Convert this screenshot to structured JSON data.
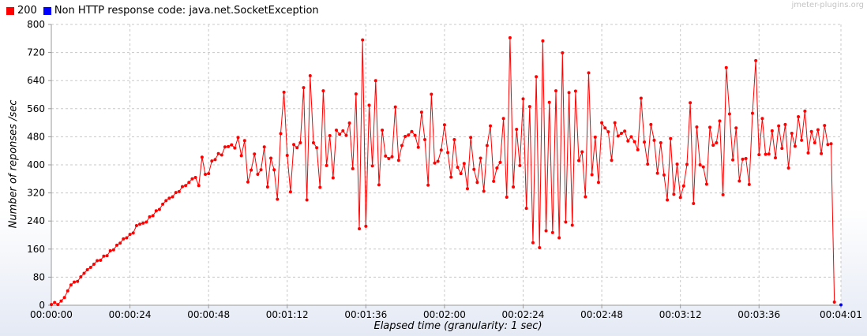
{
  "watermark": "jmeter-plugins.org",
  "colors": {
    "series_200": "#ff0000",
    "series_socket": "#0000ff",
    "grid": "#c8c8c8",
    "axis": "#999999"
  },
  "chart_data": {
    "type": "line",
    "title": "",
    "xlabel": "Elapsed time (granularity: 1 sec)",
    "ylabel": "Number of reponses /sec",
    "x_unit": "seconds",
    "xlim": [
      0,
      241
    ],
    "ylim": [
      0,
      800
    ],
    "yticks": [
      0,
      80,
      160,
      240,
      320,
      400,
      480,
      560,
      640,
      720,
      800
    ],
    "xticks": [
      {
        "value": 0,
        "label": "00:00:00"
      },
      {
        "value": 24,
        "label": "00:00:24"
      },
      {
        "value": 48,
        "label": "00:00:48"
      },
      {
        "value": 72,
        "label": "00:01:12"
      },
      {
        "value": 96,
        "label": "00:01:36"
      },
      {
        "value": 120,
        "label": "00:02:00"
      },
      {
        "value": 144,
        "label": "00:02:24"
      },
      {
        "value": 168,
        "label": "00:02:48"
      },
      {
        "value": 192,
        "label": "00:03:12"
      },
      {
        "value": 216,
        "label": "00:03:36"
      },
      {
        "value": 241,
        "label": "00:04:01"
      }
    ],
    "grid": true,
    "legend_position": "top-left",
    "series": [
      {
        "name": "200",
        "color": "#ff0000",
        "x_start": 0,
        "x_step": 1,
        "values": [
          2,
          8,
          2,
          12,
          22,
          41,
          58,
          66,
          68,
          81,
          91,
          101,
          108,
          117,
          127,
          128,
          140,
          141,
          155,
          158,
          171,
          177,
          189,
          192,
          202,
          206,
          227,
          231,
          234,
          237,
          252,
          255,
          269,
          273,
          288,
          298,
          305,
          309,
          321,
          324,
          338,
          341,
          350,
          360,
          364,
          341,
          422,
          373,
          375,
          411,
          415,
          432,
          428,
          451,
          452,
          457,
          448,
          478,
          426,
          469,
          351,
          385,
          431,
          373,
          386,
          451,
          337,
          419,
          386,
          302,
          489,
          607,
          427,
          323,
          458,
          449,
          463,
          620,
          300,
          654,
          463,
          449,
          336,
          611,
          398,
          483,
          363,
          499,
          487,
          497,
          484,
          519,
          389,
          602,
          218,
          756,
          225,
          570,
          397,
          640,
          343,
          499,
          425,
          418,
          423,
          565,
          413,
          455,
          481,
          485,
          495,
          484,
          450,
          550,
          472,
          342,
          601,
          405,
          410,
          442,
          514,
          435,
          365,
          472,
          393,
          375,
          404,
          332,
          478,
          387,
          350,
          419,
          325,
          455,
          511,
          353,
          391,
          407,
          532,
          308,
          762,
          337,
          501,
          398,
          588,
          276,
          566,
          178,
          651,
          164,
          753,
          212,
          578,
          207,
          611,
          192,
          719,
          237,
          606,
          228,
          610,
          412,
          437,
          309,
          662,
          372,
          479,
          350,
          520,
          505,
          494,
          413,
          520,
          482,
          490,
          496,
          468,
          480,
          466,
          443,
          590,
          465,
          402,
          515,
          470,
          376,
          463,
          371,
          300,
          475,
          316,
          402,
          307,
          340,
          401,
          577,
          290,
          508,
          400,
          394,
          345,
          507,
          456,
          463,
          525,
          315,
          677,
          545,
          414,
          505,
          354,
          416,
          418,
          344,
          547,
          697,
          429,
          532,
          430,
          431,
          497,
          420,
          511,
          447,
          515,
          391,
          490,
          453,
          537,
          470,
          553,
          434,
          495,
          463,
          500,
          432,
          512,
          458,
          460,
          9
        ]
      },
      {
        "name": "Non HTTP response code: java.net.SocketException",
        "color": "#0000ff",
        "x": [
          241
        ],
        "values": [
          1
        ]
      }
    ]
  }
}
